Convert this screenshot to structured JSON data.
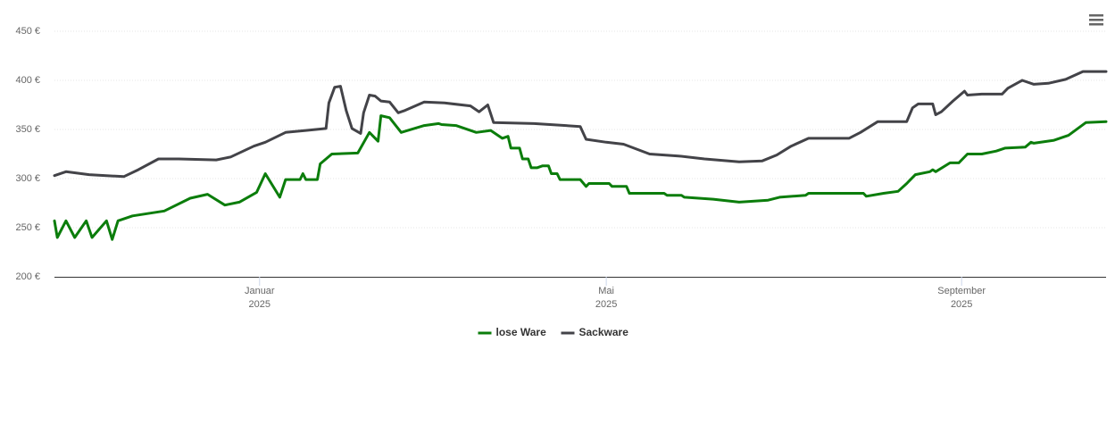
{
  "chart_data": {
    "type": "line",
    "xlim": [
      -71,
      293
    ],
    "xticks": [
      {
        "value": 0,
        "label": "Januar",
        "sublabel": "2025"
      },
      {
        "value": 120,
        "label": "Mai",
        "sublabel": "2025"
      },
      {
        "value": 243,
        "label": "September",
        "sublabel": "2025"
      }
    ],
    "ylim": [
      200,
      450
    ],
    "yticks": [
      {
        "value": 200,
        "label": "200 €"
      },
      {
        "value": 250,
        "label": "250 €"
      },
      {
        "value": 300,
        "label": "300 €"
      },
      {
        "value": 350,
        "label": "350 €"
      },
      {
        "value": 400,
        "label": "400 €"
      },
      {
        "value": 450,
        "label": "450 €"
      }
    ],
    "grid": true,
    "legend": "bottom",
    "series": [
      {
        "name": "lose Ware",
        "color": "#0b7d0b",
        "x": [
          -71,
          -70,
          -67,
          -64,
          -60,
          -58,
          -53,
          -51,
          -49,
          -44,
          -33,
          -24,
          -18,
          -12,
          -7,
          -1,
          2,
          7,
          9,
          14,
          15,
          16,
          20,
          21,
          25,
          34,
          38,
          41,
          42,
          45,
          49,
          57,
          62,
          63,
          68,
          75,
          80,
          84,
          86,
          87,
          90,
          91,
          93,
          94,
          96,
          98,
          100,
          101,
          103,
          104,
          111,
          113,
          114,
          121,
          122,
          127,
          128,
          140,
          141,
          146,
          147,
          157,
          166,
          176,
          180,
          189,
          190,
          209,
          210,
          216,
          221,
          224,
          227,
          232,
          233,
          234,
          239,
          242,
          245,
          250,
          255,
          258,
          265,
          267,
          268,
          275,
          280,
          286,
          293
        ],
        "values": [
          257,
          240,
          257,
          240,
          257,
          240,
          257,
          238,
          257,
          262,
          267,
          280,
          284,
          273,
          276,
          286,
          305,
          281,
          299,
          299,
          305,
          299,
          299,
          315,
          325,
          326,
          347,
          338,
          364,
          362,
          347,
          354,
          356,
          355,
          354,
          347,
          349,
          341,
          343,
          331,
          331,
          320,
          320,
          311,
          311,
          313,
          313,
          305,
          305,
          299,
          299,
          292,
          295,
          295,
          292,
          292,
          285,
          285,
          283,
          283,
          281,
          279,
          276,
          278,
          281,
          283,
          285,
          285,
          282,
          285,
          287,
          295,
          304,
          307,
          309,
          307,
          316,
          316,
          325,
          325,
          328,
          331,
          332,
          337,
          336,
          339,
          344,
          357,
          358
        ]
      },
      {
        "name": "Sackware",
        "color": "#434348",
        "x": [
          -71,
          -67,
          -59,
          -53,
          -47,
          -42,
          -35,
          -28,
          -15,
          -10,
          -2,
          2,
          9,
          16,
          23,
          24,
          26,
          28,
          30,
          32,
          35,
          36,
          38,
          40,
          42,
          45,
          48,
          50,
          57,
          64,
          73,
          76,
          79,
          81,
          95,
          111,
          113,
          120,
          126,
          135,
          145,
          154,
          166,
          174,
          179,
          184,
          190,
          204,
          208,
          214,
          224,
          226,
          228,
          233,
          234,
          236,
          240,
          244,
          245,
          250,
          257,
          259,
          264,
          268,
          273,
          279,
          285,
          293
        ],
        "values": [
          303,
          307,
          304,
          303,
          302,
          309,
          320,
          320,
          319,
          322,
          333,
          337,
          347,
          349,
          351,
          377,
          393,
          394,
          369,
          351,
          346,
          367,
          385,
          384,
          379,
          378,
          367,
          369,
          378,
          377,
          374,
          368,
          375,
          357,
          356,
          353,
          340,
          337,
          335,
          325,
          323,
          320,
          317,
          318,
          324,
          333,
          341,
          341,
          347,
          358,
          358,
          372,
          376,
          376,
          365,
          368,
          379,
          389,
          385,
          386,
          386,
          392,
          400,
          396,
          397,
          401,
          409,
          409
        ]
      }
    ]
  }
}
